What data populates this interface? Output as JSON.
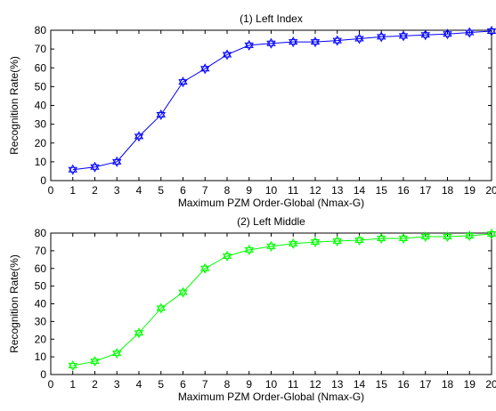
{
  "chart_data": [
    {
      "type": "line",
      "title": "(1) Left Index",
      "xlabel": "Maximum PZM Order-Global (Nmax-G)",
      "ylabel": "Recognition Rate(%)",
      "xlim": [
        0,
        20
      ],
      "ylim": [
        0,
        80
      ],
      "xticks": [
        0,
        1,
        2,
        3,
        4,
        5,
        6,
        7,
        8,
        9,
        10,
        11,
        12,
        13,
        14,
        15,
        16,
        17,
        18,
        19,
        20
      ],
      "yticks": [
        0,
        10,
        20,
        30,
        40,
        50,
        60,
        70,
        80
      ],
      "grid": false,
      "marker": "hexagram",
      "color": "#0000ff",
      "series": [
        {
          "x": [
            1,
            2,
            3,
            4,
            5,
            6,
            7,
            8,
            9,
            10,
            11,
            12,
            13,
            14,
            15,
            16,
            17,
            18,
            19,
            20
          ],
          "values": [
            5.8,
            7.2,
            10.0,
            23.5,
            35.0,
            52.5,
            59.5,
            67.0,
            72.0,
            73.0,
            73.8,
            73.8,
            74.5,
            75.5,
            76.5,
            77.0,
            77.5,
            78.0,
            78.8,
            79.5
          ]
        }
      ]
    },
    {
      "type": "line",
      "title": "(2) Left Middle",
      "xlabel": "Maximum PZM Order-Global (Nmax-G)",
      "ylabel": "Recognition Rate(%)",
      "xlim": [
        0,
        20
      ],
      "ylim": [
        0,
        80
      ],
      "xticks": [
        0,
        1,
        2,
        3,
        4,
        5,
        6,
        7,
        8,
        9,
        10,
        11,
        12,
        13,
        14,
        15,
        16,
        17,
        18,
        19,
        20
      ],
      "yticks": [
        0,
        10,
        20,
        30,
        40,
        50,
        60,
        70,
        80
      ],
      "grid": false,
      "marker": "hexagram",
      "color": "#00ff00",
      "series": [
        {
          "x": [
            1,
            2,
            3,
            4,
            5,
            6,
            7,
            8,
            9,
            10,
            11,
            12,
            13,
            14,
            15,
            16,
            17,
            18,
            19,
            20
          ],
          "values": [
            5.0,
            7.5,
            12.0,
            23.5,
            37.5,
            46.5,
            60.0,
            67.0,
            70.5,
            72.5,
            74.0,
            75.0,
            75.5,
            76.0,
            77.0,
            77.0,
            78.0,
            78.0,
            78.5,
            79.5
          ]
        }
      ]
    }
  ]
}
